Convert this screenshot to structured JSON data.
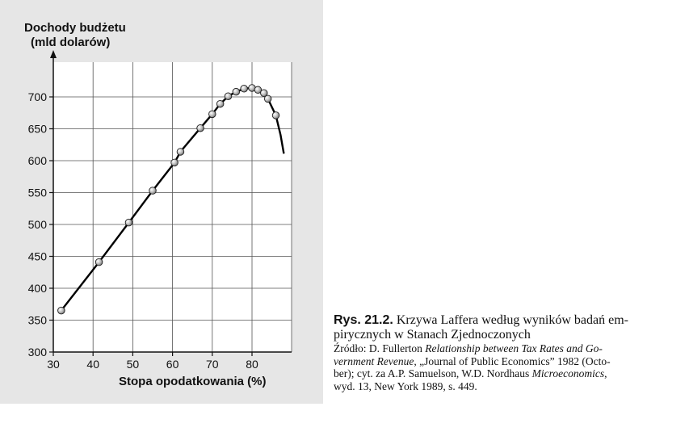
{
  "chart_data": {
    "type": "line",
    "ylabel_line1": "Dochody budżetu",
    "ylabel_line2": "(mld dolarów)",
    "xlabel": "Stopa opodatkowania (%)",
    "xlim": [
      30,
      90
    ],
    "ylim": [
      300,
      750
    ],
    "xticks": [
      30,
      40,
      50,
      60,
      70,
      80
    ],
    "yticks": [
      300,
      350,
      400,
      450,
      500,
      550,
      600,
      650,
      700
    ],
    "grid": true,
    "points": [
      {
        "x": 32,
        "y": 365
      },
      {
        "x": 41.5,
        "y": 441
      },
      {
        "x": 49,
        "y": 503
      },
      {
        "x": 55,
        "y": 553
      },
      {
        "x": 60.5,
        "y": 597
      },
      {
        "x": 62,
        "y": 614
      },
      {
        "x": 67,
        "y": 651
      },
      {
        "x": 70,
        "y": 673
      },
      {
        "x": 72,
        "y": 689
      },
      {
        "x": 74,
        "y": 701
      },
      {
        "x": 76,
        "y": 708
      },
      {
        "x": 78,
        "y": 713
      },
      {
        "x": 80,
        "y": 714
      },
      {
        "x": 81.5,
        "y": 711
      },
      {
        "x": 83,
        "y": 706
      },
      {
        "x": 84,
        "y": 697
      },
      {
        "x": 86,
        "y": 671
      }
    ],
    "curve_tail": [
      {
        "x": 87.2,
        "y": 640
      },
      {
        "x": 88,
        "y": 611
      }
    ]
  },
  "caption": {
    "label": "Rys. 21.2.",
    "title_part1": " Krzywa Laffera według wyników badań em-",
    "title_part2": "pirycznych w Stanach Zjednoczonych",
    "src_prefix": "Źródło: D. Fullerton ",
    "src_title_1": "Relationship between Tax Rates and Go-",
    "src_title_2": "vernment Revenue",
    "src_rest_1": ", „Journal of Public Economics” 1982 (Octo-",
    "src_rest_2": "ber); cyt. za A.P. Samuelson, W.D. Nordhaus ",
    "src_book": "Microeconomics",
    "src_comma": ",",
    "src_rest_3": "wyd. 13, New York 1989, s. 449."
  }
}
